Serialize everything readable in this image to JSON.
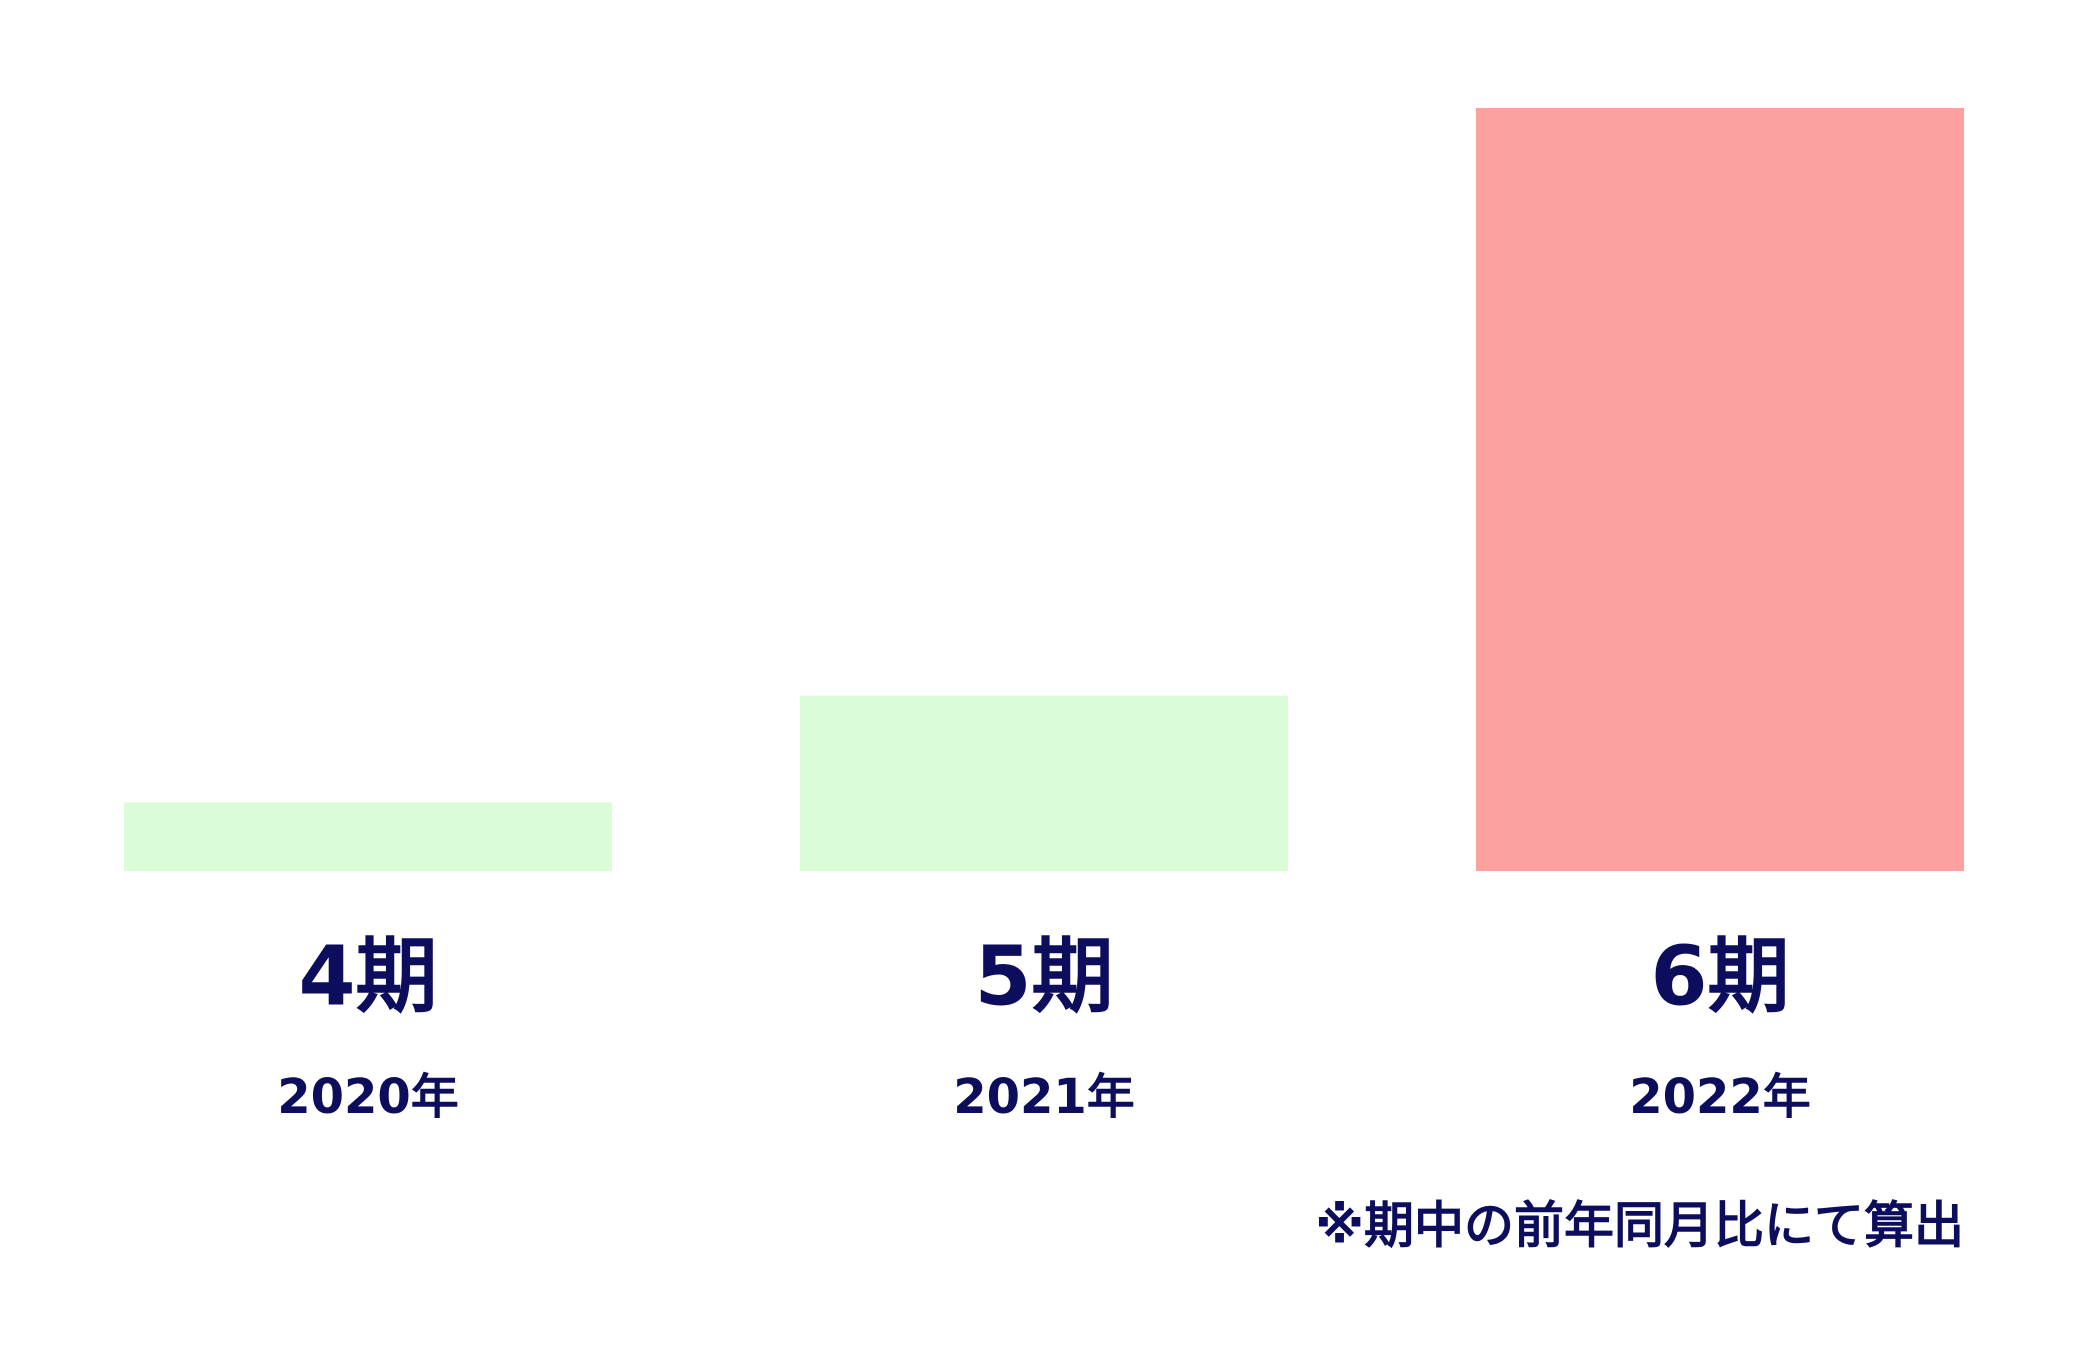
{
  "chart_data": {
    "type": "bar",
    "categories": [
      "4期",
      "5期",
      "6期"
    ],
    "years": [
      "2020年",
      "2021年",
      "2022年"
    ],
    "values": [
      9,
      23,
      100
    ],
    "colors": [
      "#dafdd7",
      "#dafdd7",
      "#fca0a0"
    ],
    "ylim": [
      0,
      100
    ],
    "note": "※期中の前年同月比にて算出"
  }
}
